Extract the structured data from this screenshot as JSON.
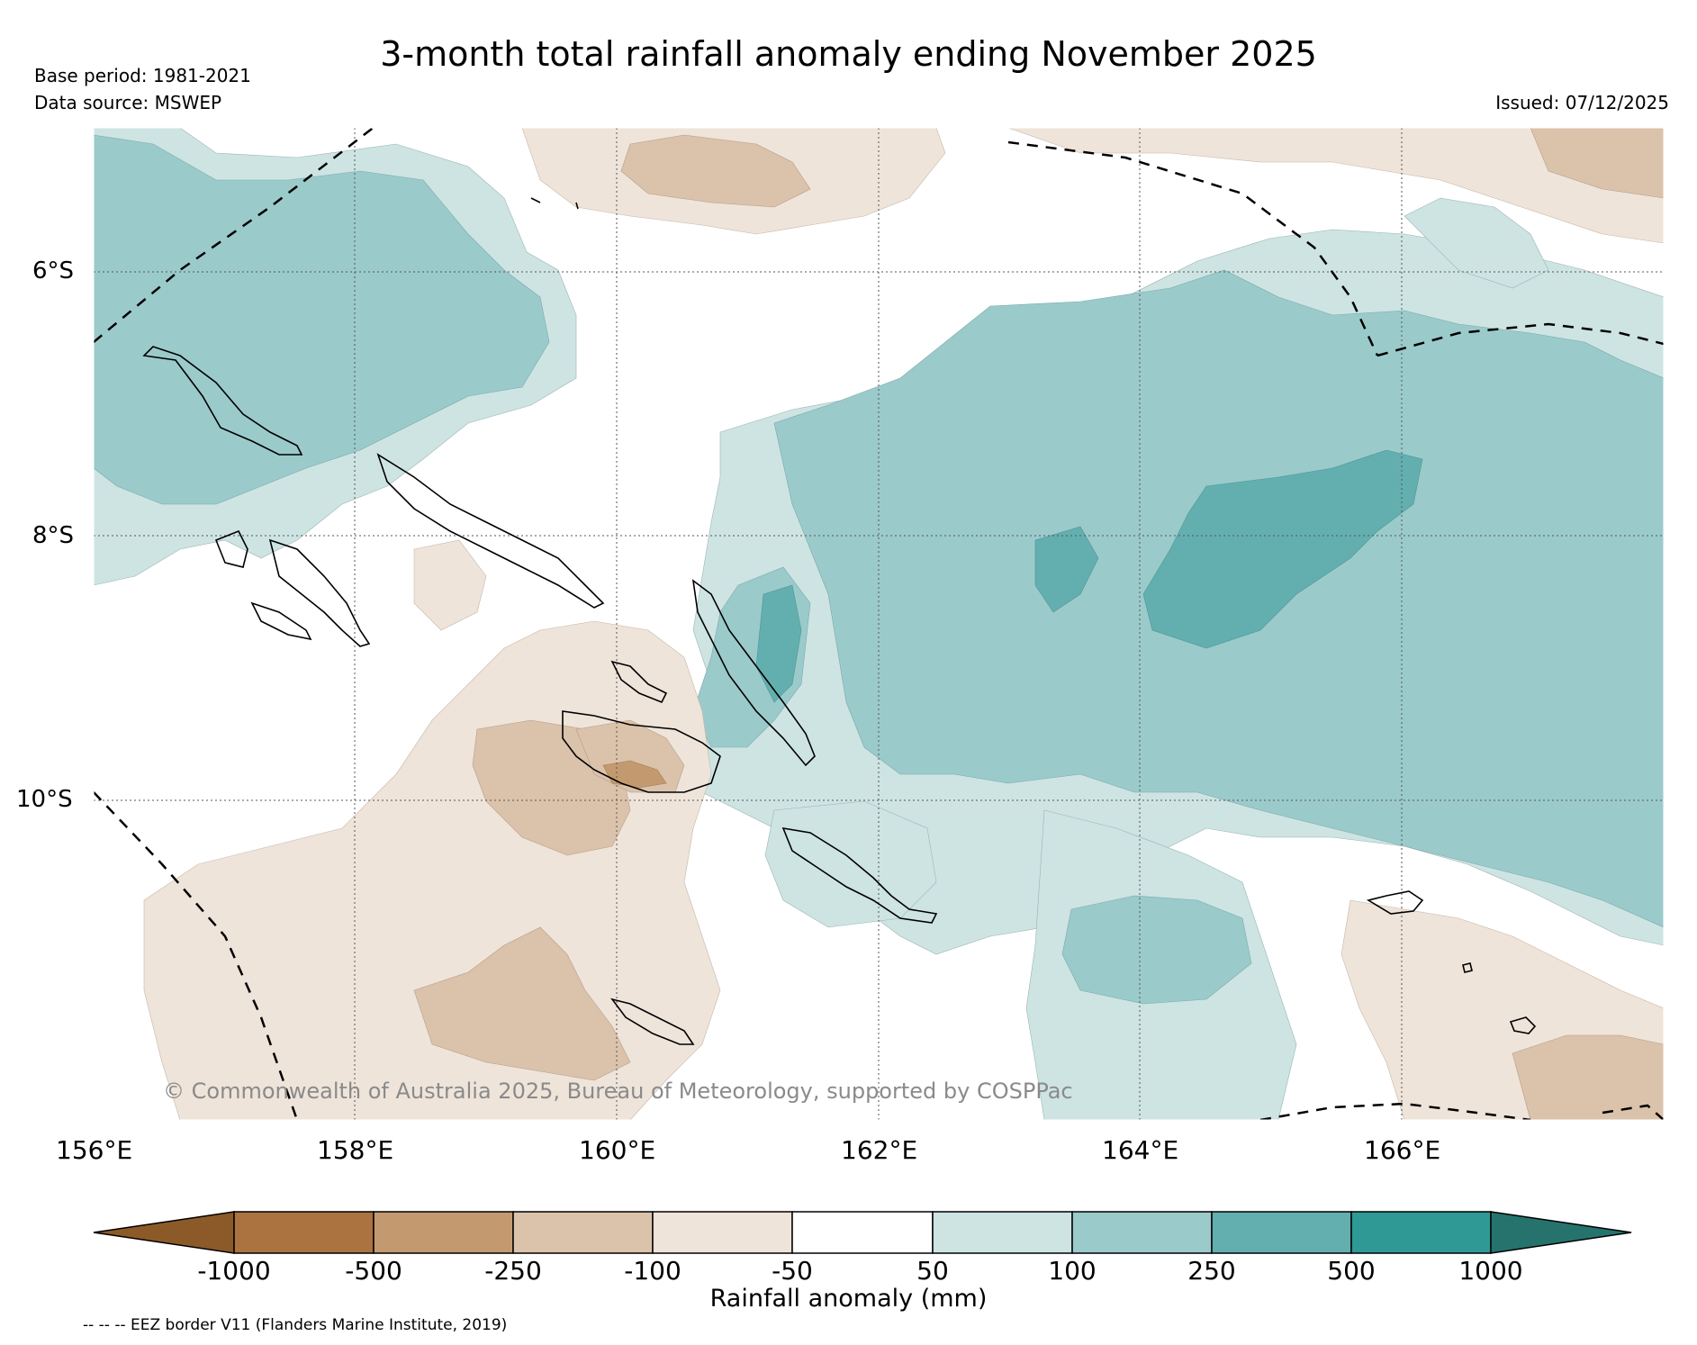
{
  "header": {
    "title": "3-month total rainfall anomaly ending November 2025",
    "base_period": "Base period: 1981-2021",
    "data_source": "Data source: MSWEP",
    "issued": "Issued: 07/12/2025"
  },
  "map": {
    "lat_labels": [
      "6°S",
      "8°S",
      "10°S"
    ],
    "lon_labels": [
      "156°E",
      "158°E",
      "160°E",
      "162°E",
      "164°E",
      "166°E"
    ],
    "copyright": "© Commonwealth of Australia 2025, Bureau of Meteorology, supported by COSPPac",
    "region": "Solomon Islands",
    "lon_range": [
      156,
      168
    ],
    "lat_range": [
      -4.9,
      -12.4
    ]
  },
  "colorbar": {
    "label": "Rainfall anomaly (mm)",
    "ticks": [
      "-1000",
      "-500",
      "-250",
      "-100",
      "-50",
      "50",
      "100",
      "250",
      "500",
      "1000"
    ],
    "colors": {
      "lt_-1000": "#8c5a28",
      "-1000_-500": "#ab733f",
      "-500_-250": "#c39a6f",
      "-250_-100": "#dbc2aa",
      "-100_-50": "#efe4da",
      "-50_50": "#ffffff",
      "50_100": "#cde4e3",
      "100_250": "#9bcacb",
      "250_500": "#63afb0",
      "500_1000": "#2e9995",
      "gt_1000": "#26736e"
    }
  },
  "footer": {
    "eez_note": "-- -- -- EEZ border V11 (Flanders Marine Institute, 2019)"
  }
}
